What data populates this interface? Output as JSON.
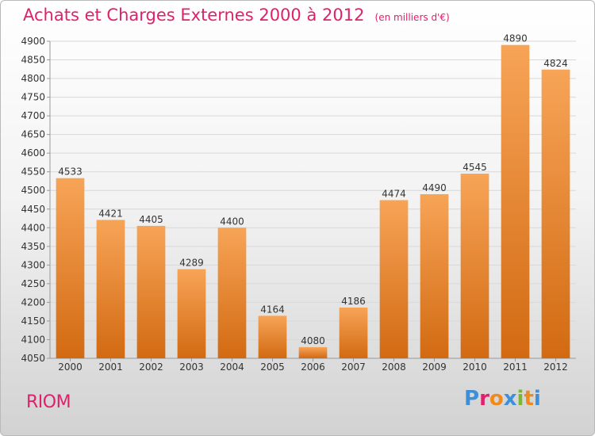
{
  "header": {
    "title": "Achats et Charges Externes 2000 à 2012",
    "subtitle": "(en milliers d'€)"
  },
  "footer": {
    "commune": "RIOM",
    "logo_text": "Proxiti"
  },
  "colors": {
    "title": "#e0206b",
    "bar_top": "#f7a457",
    "bar_bottom": "#d26a12",
    "logo": [
      "#3c8fd8",
      "#e0206b",
      "#f08a1c",
      "#3c8fd8",
      "#7ab830",
      "#f08a1c",
      "#3c8fd8"
    ]
  },
  "chart_data": {
    "type": "bar",
    "title": "Achats et Charges Externes 2000 à 2012",
    "subtitle": "(en milliers d'€)",
    "categories": [
      "2000",
      "2001",
      "2002",
      "2003",
      "2004",
      "2005",
      "2006",
      "2007",
      "2008",
      "2009",
      "2010",
      "2011",
      "2012"
    ],
    "values": [
      4533,
      4421,
      4405,
      4289,
      4400,
      4164,
      4080,
      4186,
      4474,
      4490,
      4545,
      4890,
      4824
    ],
    "ylim": [
      4050,
      4900
    ],
    "yticks": [
      4050,
      4100,
      4150,
      4200,
      4250,
      4300,
      4350,
      4400,
      4450,
      4500,
      4550,
      4600,
      4650,
      4700,
      4750,
      4800,
      4850,
      4900
    ],
    "grid": true,
    "data_labels": true
  }
}
